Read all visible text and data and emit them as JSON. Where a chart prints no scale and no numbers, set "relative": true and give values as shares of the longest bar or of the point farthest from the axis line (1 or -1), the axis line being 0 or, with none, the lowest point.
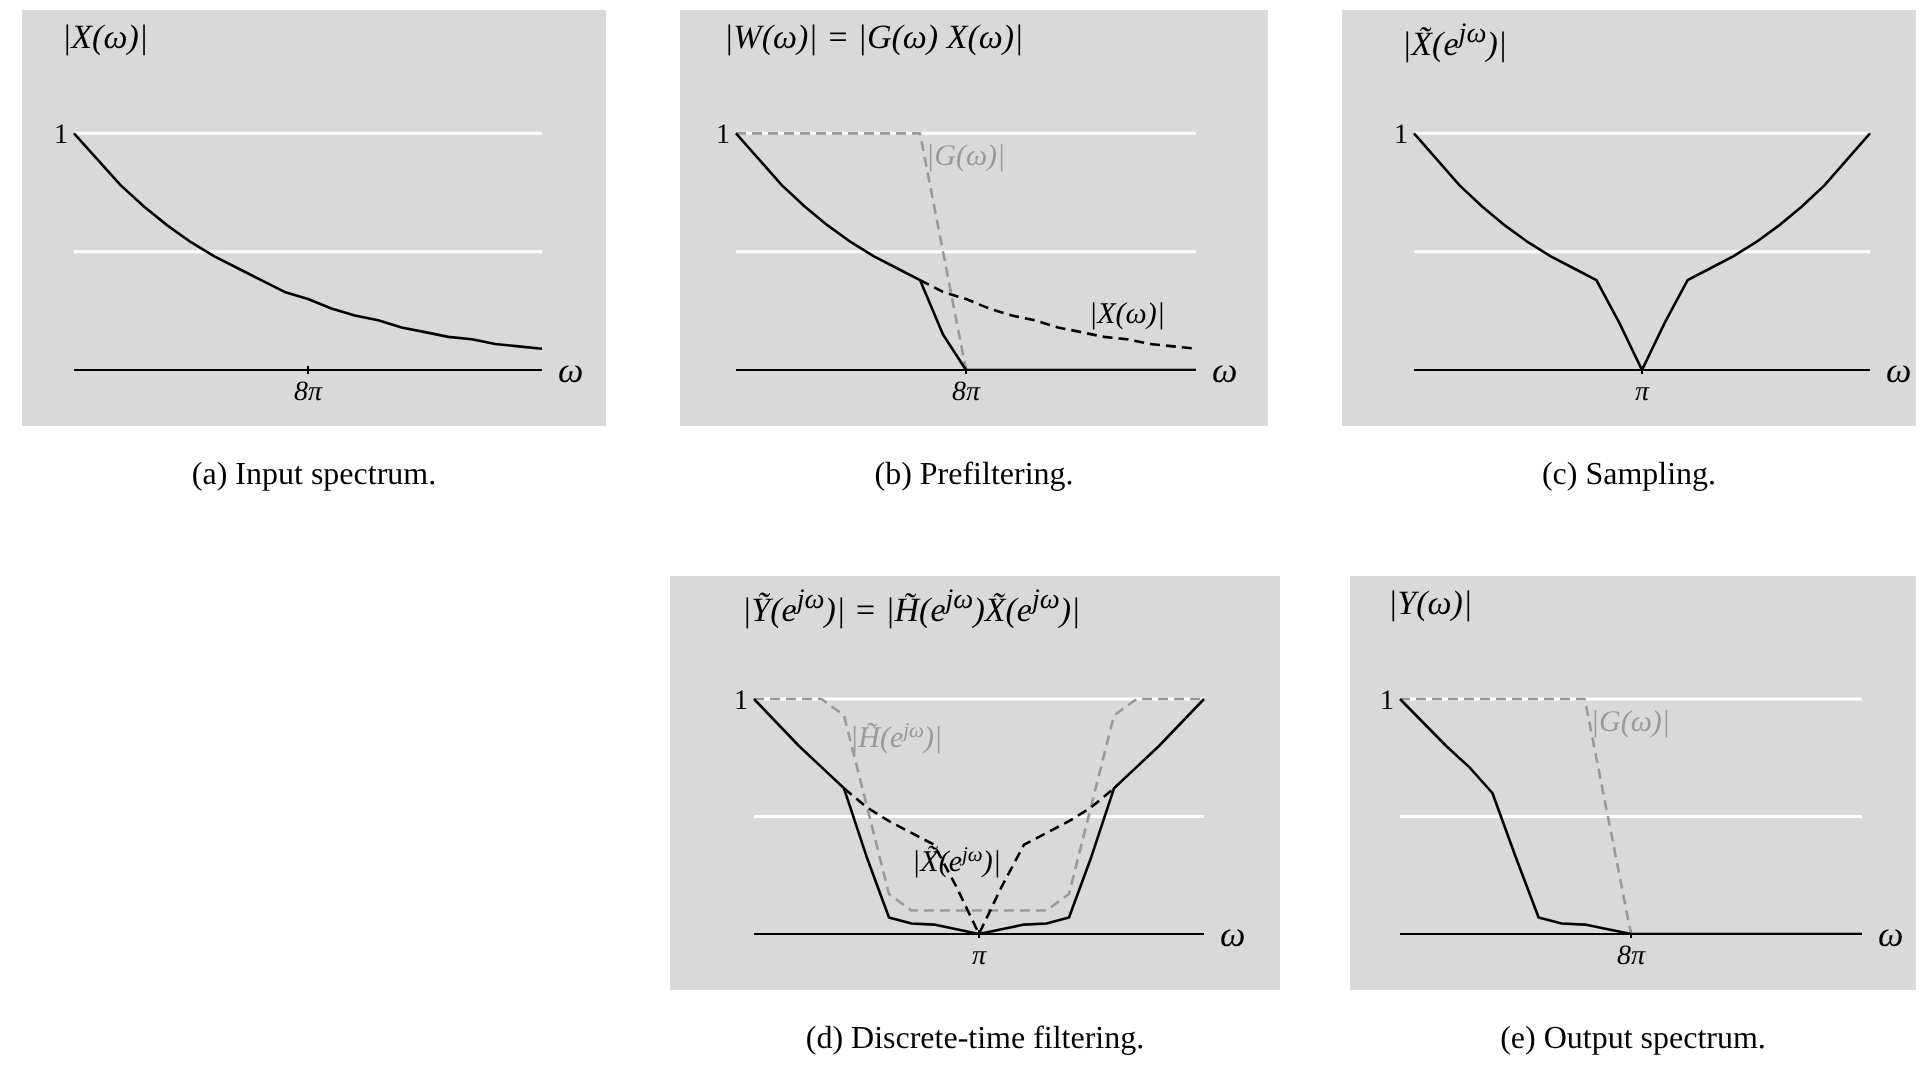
{
  "chart_data": [
    {
      "type": "line",
      "relative": true,
      "marker": "none",
      "title": "|X(ω)|",
      "xlabel": "ω",
      "categories": [
        null,
        null,
        null,
        null,
        null,
        null,
        null,
        null,
        null,
        null,
        null,
        null,
        null,
        null,
        null,
        null,
        null,
        null,
        null,
        null,
        null
      ],
      "series": [
        {
          "color": "#000000",
          "line_style": "solid",
          "values": [
            1,
            0.89,
            0.78,
            0.69,
            0.61,
            0.54,
            0.48,
            0.43,
            0.38,
            0.33,
            0.3,
            0.26,
            0.23,
            0.21,
            0.18,
            0.16,
            0.14,
            0.13,
            0.11,
            0.1,
            0.09
          ]
        }
      ],
      "ref_lines": [
        {
          "axis": "y",
          "value": 0.5,
          "color": "#ffffff"
        },
        {
          "axis": "y",
          "value": 1,
          "color": "#ffffff",
          "label": "1"
        }
      ],
      "annotations": [
        "8π",
        "(a) Input spectrum."
      ]
    },
    {
      "type": "line",
      "relative": true,
      "marker": "none",
      "title": "|W(ω)| = |G(ω) X(ω)|",
      "xlabel": "ω",
      "categories": [
        null,
        null,
        null,
        null,
        null,
        null,
        null,
        null,
        null,
        null,
        null,
        null,
        null,
        null,
        null,
        null,
        null,
        null,
        null,
        null,
        null
      ],
      "series": [
        {
          "name": "|G(ω)|",
          "color": "#999999",
          "line_style": "dashed",
          "values": [
            1,
            1,
            1,
            1,
            1,
            1,
            1,
            1,
            1,
            0.5,
            0,
            null,
            null,
            null,
            null,
            null,
            null,
            null,
            null,
            null,
            null
          ]
        },
        {
          "name": "|X(ω)|",
          "color": "#000000",
          "line_style": "dashed",
          "values": [
            null,
            null,
            null,
            null,
            null,
            null,
            null,
            null,
            0.38,
            0.33,
            0.3,
            0.26,
            0.23,
            0.21,
            0.18,
            0.16,
            0.14,
            0.13,
            0.11,
            0.1,
            0.09
          ]
        },
        {
          "color": "#000000",
          "line_style": "solid",
          "values": [
            1,
            0.89,
            0.78,
            0.69,
            0.61,
            0.54,
            0.48,
            0.43,
            0.38,
            0.15,
            0,
            0,
            0,
            0,
            0,
            0,
            0,
            0,
            0,
            0,
            0
          ]
        }
      ],
      "ref_lines": [
        {
          "axis": "y",
          "value": 0.5,
          "color": "#ffffff"
        },
        {
          "axis": "y",
          "value": 1,
          "color": "#ffffff",
          "label": "1"
        }
      ],
      "annotations": [
        "8π",
        "(b) Prefiltering."
      ]
    },
    {
      "type": "line",
      "relative": true,
      "marker": "none",
      "title": "|X̃(e$^{jω}$)|",
      "xlabel": "ω",
      "categories": [
        null,
        null,
        null,
        null,
        null,
        null,
        null,
        null,
        null,
        null,
        null,
        null,
        null,
        null,
        null,
        null,
        null,
        null,
        null,
        null,
        null
      ],
      "series": [
        {
          "color": "#000000",
          "line_style": "solid",
          "values": [
            1,
            0.89,
            0.78,
            0.69,
            0.61,
            0.54,
            0.48,
            0.43,
            0.38,
            0.2,
            0,
            0.2,
            0.38,
            0.43,
            0.48,
            0.54,
            0.61,
            0.69,
            0.78,
            0.89,
            1
          ]
        }
      ],
      "ref_lines": [
        {
          "axis": "y",
          "value": 0.5,
          "color": "#ffffff"
        },
        {
          "axis": "y",
          "value": 1,
          "color": "#ffffff",
          "label": "1"
        }
      ],
      "annotations": [
        "π",
        "(c) Sampling."
      ]
    },
    {
      "type": "line",
      "relative": true,
      "marker": "none",
      "title": "|Ỹ(e$^{jω}$)| = |H̃(e$^{jω}$)X̃(e$^{jω}$)|",
      "xlabel": "ω",
      "categories": [
        null,
        null,
        null,
        null,
        null,
        null,
        null,
        null,
        null,
        null,
        null,
        null,
        null,
        null,
        null,
        null,
        null,
        null,
        null,
        null,
        null
      ],
      "series": [
        {
          "name": "|H̃(e$^{jω}$)|",
          "color": "#999999",
          "line_style": "dashed",
          "values": [
            1,
            1,
            1,
            1,
            0.93,
            0.55,
            0.17,
            0.1,
            0.1,
            0.1,
            0.1,
            0.1,
            0.1,
            0.1,
            0.17,
            0.55,
            0.93,
            1,
            1,
            1,
            1
          ]
        },
        {
          "name": "|X̃(e$^{jω}$)|",
          "color": "#000000",
          "line_style": "dashed",
          "values": [
            null,
            null,
            null,
            null,
            0.62,
            0.54,
            0.48,
            0.43,
            0.38,
            0.2,
            0,
            0.2,
            0.38,
            0.43,
            0.48,
            0.54,
            0.62,
            null,
            null,
            null,
            null
          ]
        },
        {
          "color": "#000000",
          "line_style": "solid",
          "values": [
            1,
            0.9,
            0.8,
            0.71,
            0.62,
            0.33,
            0.07,
            0.045,
            0.04,
            0.02,
            0,
            0.02,
            0.04,
            0.045,
            0.07,
            0.33,
            0.62,
            0.71,
            0.8,
            0.9,
            1
          ]
        }
      ],
      "ref_lines": [
        {
          "axis": "y",
          "value": 0.5,
          "color": "#ffffff"
        },
        {
          "axis": "y",
          "value": 1,
          "color": "#ffffff",
          "label": "1"
        }
      ],
      "annotations": [
        "π",
        "(d) Discrete-time filtering."
      ]
    },
    {
      "type": "line",
      "relative": true,
      "marker": "none",
      "title": "|Y(ω)|",
      "xlabel": "ω",
      "categories": [
        null,
        null,
        null,
        null,
        null,
        null,
        null,
        null,
        null,
        null,
        null,
        null,
        null,
        null,
        null,
        null,
        null,
        null,
        null,
        null,
        null
      ],
      "series": [
        {
          "name": "|G(ω)|",
          "color": "#999999",
          "line_style": "dashed",
          "values": [
            1,
            1,
            1,
            1,
            1,
            1,
            1,
            1,
            1,
            0.5,
            0,
            null,
            null,
            null,
            null,
            null,
            null,
            null,
            null,
            null,
            null
          ]
        },
        {
          "color": "#000000",
          "line_style": "solid",
          "values": [
            1,
            0.9,
            0.8,
            0.71,
            0.6,
            0.33,
            0.07,
            0.045,
            0.04,
            0.02,
            0,
            0,
            0,
            0,
            0,
            0,
            0,
            0,
            0,
            0,
            0
          ]
        }
      ],
      "ref_lines": [
        {
          "axis": "y",
          "value": 0.5,
          "color": "#ffffff"
        },
        {
          "axis": "y",
          "value": 1,
          "color": "#ffffff",
          "label": "1"
        }
      ],
      "annotations": [
        "8π",
        "(e) Output spectrum."
      ]
    }
  ]
}
